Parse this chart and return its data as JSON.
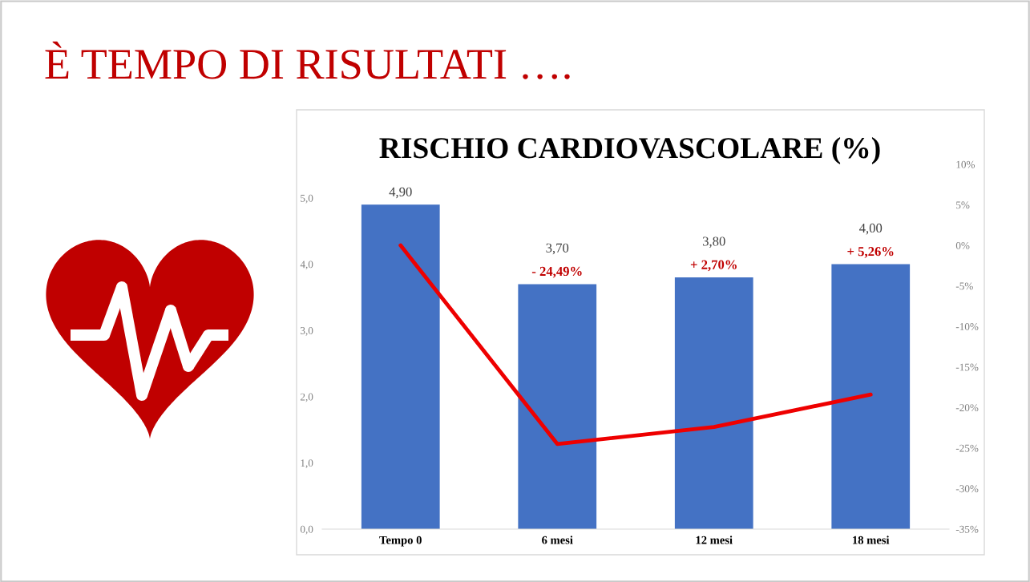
{
  "chart_data": {
    "type": "bar",
    "title": "RISCHIO CARDIOVASCOLARE (%)",
    "categories": [
      "Tempo 0",
      "6 mesi",
      "12 mesi",
      "18 mesi"
    ],
    "series": [
      {
        "color": "#4472c4",
        "values": [
          4.9,
          3.7,
          3.8,
          4.0
        ],
        "value_labels": [
          "4,90",
          "3,70",
          "3,80",
          "4,00"
        ]
      },
      {
        "type": "line",
        "axis": "y2",
        "color": "#ee0000",
        "values": [
          0,
          -24.5,
          -22.4,
          -18.4
        ]
      }
    ],
    "ylim": [
      0,
      5
    ],
    "yticks": [
      {
        "value": 0,
        "label": "0,0"
      },
      {
        "value": 1,
        "label": "1,0"
      },
      {
        "value": 2,
        "label": "2,0"
      },
      {
        "value": 3,
        "label": "3,0"
      },
      {
        "value": 4,
        "label": "4,0"
      },
      {
        "value": 5,
        "label": "5,0"
      }
    ],
    "y2lim": [
      -35,
      10
    ],
    "y2ticks": [
      {
        "value": -35,
        "label": "-35%"
      },
      {
        "value": -30,
        "label": "-30%"
      },
      {
        "value": -25,
        "label": "-25%"
      },
      {
        "value": -20,
        "label": "-20%"
      },
      {
        "value": -15,
        "label": "-15%"
      },
      {
        "value": -10,
        "label": "-10%"
      },
      {
        "value": -5,
        "label": "-5%"
      },
      {
        "value": 0,
        "label": "0%"
      },
      {
        "value": 5,
        "label": "5%"
      },
      {
        "value": 10,
        "label": "10%"
      }
    ],
    "annotations": [
      "È TEMPO DI RISULTATI ….",
      {
        "text": "- 24,49%",
        "x": "6 mesi",
        "y": 3.7
      },
      {
        "text": "+ 2,70%",
        "x": "12 mesi",
        "y": 3.8
      },
      {
        "text": "+ 5,26%",
        "x": "18 mesi",
        "y": 4.0
      }
    ]
  }
}
